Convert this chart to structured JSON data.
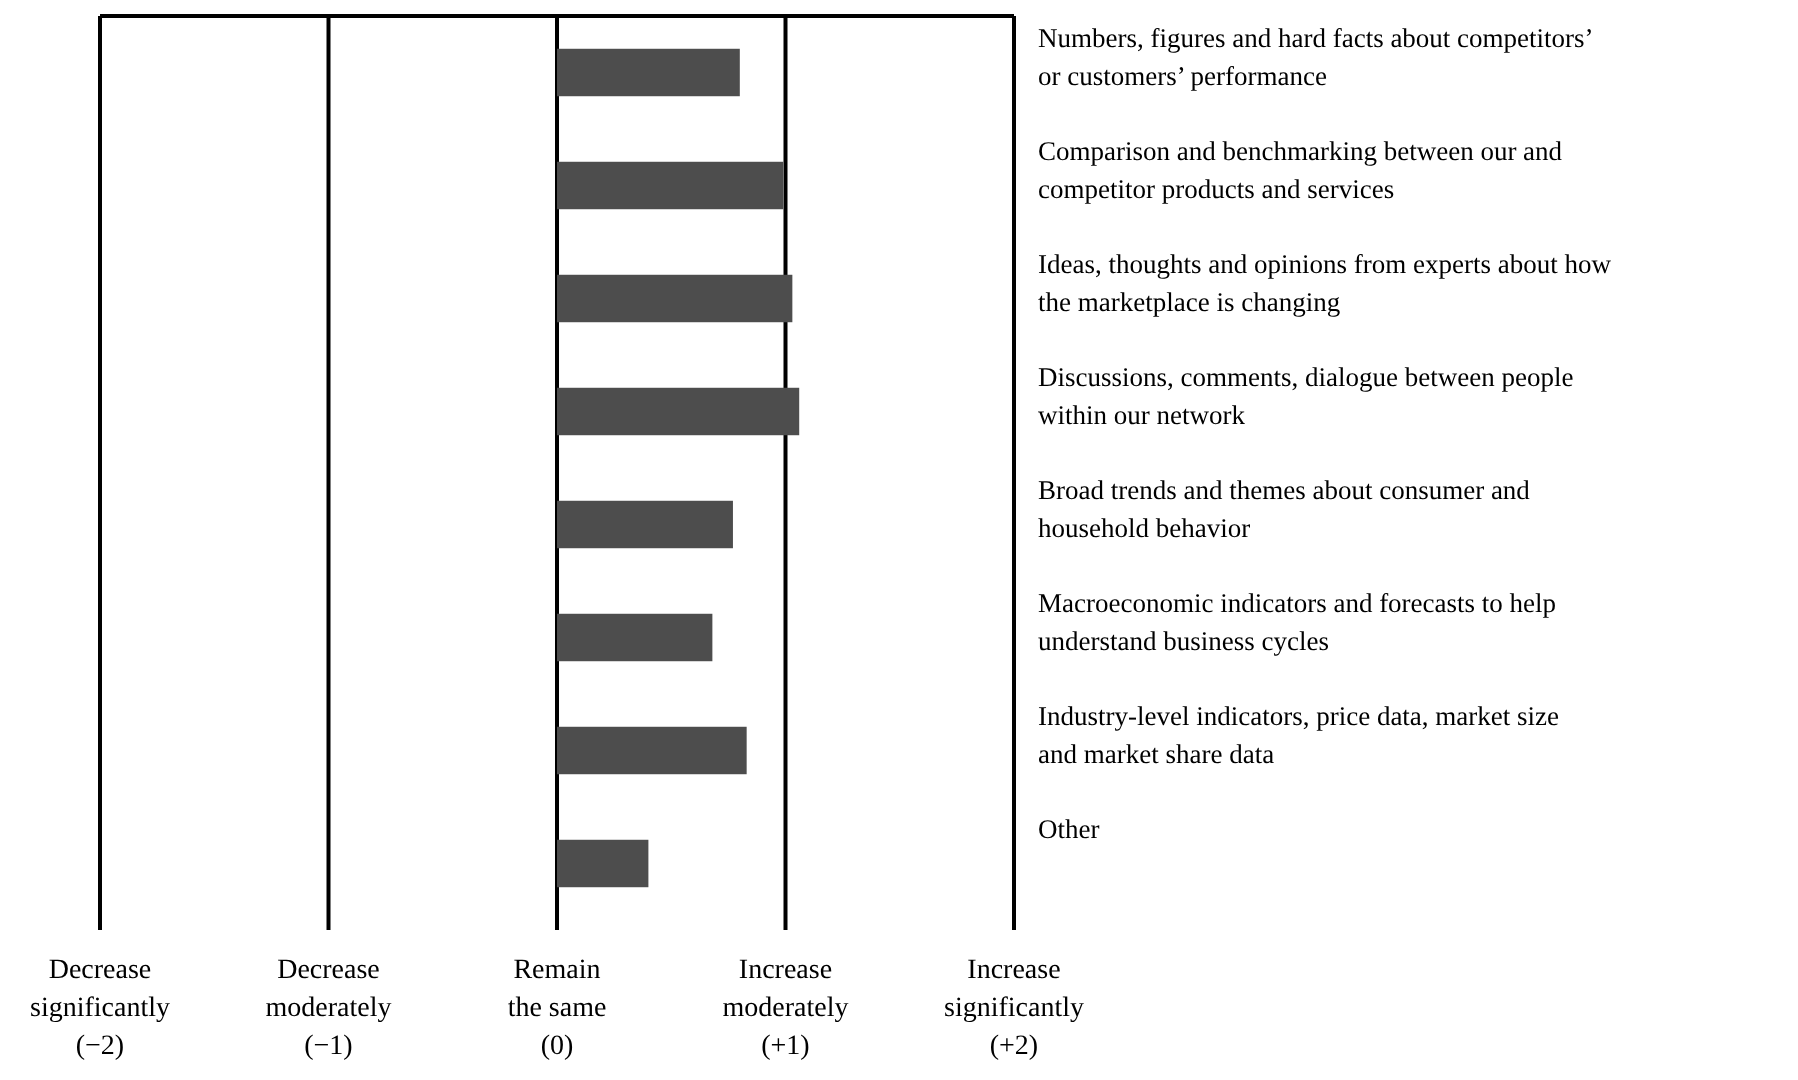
{
  "chart_data": {
    "type": "bar",
    "orientation": "horizontal",
    "categories": [
      "Numbers, figures and hard facts about competitors’ or customers’ performance",
      "Comparison and benchmarking between our and competitor products and services",
      "Ideas, thoughts and opinions from experts about how the marketplace is changing",
      "Discussions, comments, dialogue between people within our network",
      "Broad trends and themes about consumer and household behavior",
      "Macroeconomic indicators and forecasts to help understand business cycles",
      "Industry-level indicators, price data, market size and market share data",
      "Other"
    ],
    "values": [
      0.8,
      0.99,
      1.03,
      1.06,
      0.77,
      0.68,
      0.83,
      0.4
    ],
    "color": "#4d4d4d",
    "xlim": [
      -2,
      2
    ],
    "xticks": [
      {
        "value": -2,
        "label": "Decrease significantly (−2)"
      },
      {
        "value": -1,
        "label": "Decrease moderately (−1)"
      },
      {
        "value": 0,
        "label": "Remain the same (0)"
      },
      {
        "value": 1,
        "label": "Increase moderately (+1)"
      },
      {
        "value": 2,
        "label": "Increase significantly (+2)"
      }
    ],
    "grid": "x"
  }
}
